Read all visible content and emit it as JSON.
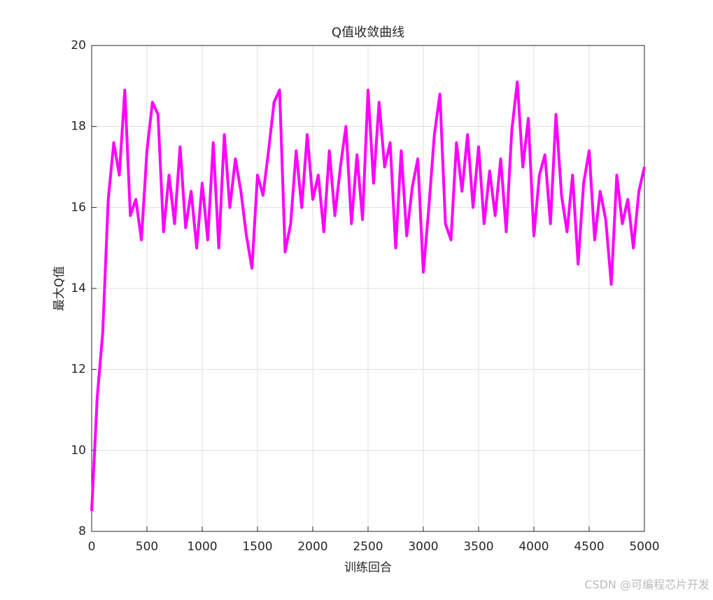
{
  "chart_data": {
    "type": "line",
    "title": "Q值收敛曲线",
    "xlabel": "训练回合",
    "ylabel": "最大Q值",
    "x": [
      0,
      50,
      100,
      150,
      200,
      250,
      300,
      350,
      400,
      450,
      500,
      550,
      600,
      650,
      700,
      750,
      800,
      850,
      900,
      950,
      1000,
      1050,
      1100,
      1150,
      1200,
      1250,
      1300,
      1350,
      1400,
      1450,
      1500,
      1550,
      1600,
      1650,
      1700,
      1750,
      1800,
      1850,
      1900,
      1950,
      2000,
      2050,
      2100,
      2150,
      2200,
      2250,
      2300,
      2350,
      2400,
      2450,
      2500,
      2550,
      2600,
      2650,
      2700,
      2750,
      2800,
      2850,
      2900,
      2950,
      3000,
      3050,
      3100,
      3150,
      3200,
      3250,
      3300,
      3350,
      3400,
      3450,
      3500,
      3550,
      3600,
      3650,
      3700,
      3750,
      3800,
      3850,
      3900,
      3950,
      4000,
      4050,
      4100,
      4150,
      4200,
      4250,
      4300,
      4350,
      4400,
      4450,
      4500,
      4550,
      4600,
      4650,
      4700,
      4750,
      4800,
      4850,
      4900,
      4950,
      5000
    ],
    "values": [
      8.5,
      11.3,
      12.9,
      16.2,
      17.6,
      16.8,
      18.9,
      15.8,
      16.2,
      15.2,
      17.4,
      18.6,
      18.3,
      15.4,
      16.8,
      15.6,
      17.5,
      15.5,
      16.4,
      15.0,
      16.6,
      15.2,
      17.6,
      15.0,
      17.8,
      16.0,
      17.2,
      16.4,
      15.3,
      14.5,
      16.8,
      16.3,
      17.4,
      18.6,
      18.9,
      14.9,
      15.6,
      17.4,
      16.0,
      17.8,
      16.2,
      16.8,
      15.4,
      17.4,
      15.8,
      17.0,
      18.0,
      15.6,
      17.3,
      15.7,
      18.9,
      16.6,
      18.6,
      17.0,
      17.6,
      15.0,
      17.4,
      15.3,
      16.5,
      17.2,
      14.4,
      16.0,
      17.8,
      18.8,
      15.6,
      15.2,
      17.6,
      16.4,
      17.8,
      16.0,
      17.5,
      15.6,
      16.9,
      15.8,
      17.2,
      15.4,
      17.9,
      19.1,
      17.0,
      18.2,
      15.3,
      16.8,
      17.3,
      15.6,
      18.3,
      16.3,
      15.4,
      16.8,
      14.6,
      16.6,
      17.4,
      15.2,
      16.4,
      15.7,
      14.1,
      16.8,
      15.6,
      16.2,
      15.0,
      16.4,
      17.0
    ],
    "color": "#ff00ff",
    "xlim": [
      0,
      5000
    ],
    "ylim": [
      8,
      20
    ],
    "xticks": [
      0,
      500,
      1000,
      1500,
      2000,
      2500,
      3000,
      3500,
      4000,
      4500,
      5000
    ],
    "yticks": [
      8,
      10,
      12,
      14,
      16,
      18,
      20
    ],
    "grid": true,
    "watermark": "CSDN @可编程芯片开发"
  }
}
